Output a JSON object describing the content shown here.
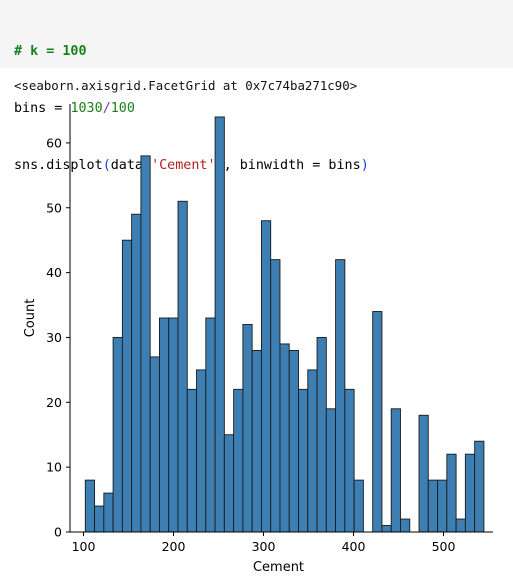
{
  "code": {
    "line1": "# k = 100",
    "line2_a": "bins = ",
    "line2_num1": "1030",
    "line2_op": "/",
    "line2_num2": "100",
    "line3_a": "sns.displot",
    "line3_open": "(",
    "line3_b": "data",
    "line3_br_open": "[",
    "line3_str": "'Cement'",
    "line3_br_close": "]",
    "line3_c": ", binwidth = bins",
    "line3_close": ")"
  },
  "output": {
    "text": "<seaborn.axisgrid.FacetGrid at 0x7c74ba271c90>"
  },
  "colors": {
    "bar_fill": "#3d7fb2",
    "bar_edge": "#1a1a1a",
    "code_bg": "#f5f5f5"
  },
  "chart_data": {
    "type": "bar",
    "xlabel": "Cement",
    "ylabel": "Count",
    "xlim": [
      85,
      555
    ],
    "ylim": [
      0,
      66
    ],
    "xticks": [
      100,
      200,
      300,
      400,
      500
    ],
    "yticks": [
      0,
      10,
      20,
      30,
      40,
      50,
      60
    ],
    "bin_start": 102.0,
    "bin_width": 10.3,
    "values": [
      8,
      4,
      6,
      30,
      45,
      49,
      58,
      27,
      33,
      33,
      51,
      22,
      25,
      33,
      64,
      15,
      22,
      32,
      28,
      48,
      42,
      29,
      28,
      22,
      25,
      30,
      19,
      42,
      22,
      8,
      0,
      34,
      1,
      19,
      2,
      0,
      18,
      8,
      8,
      12,
      2,
      12,
      14
    ]
  }
}
